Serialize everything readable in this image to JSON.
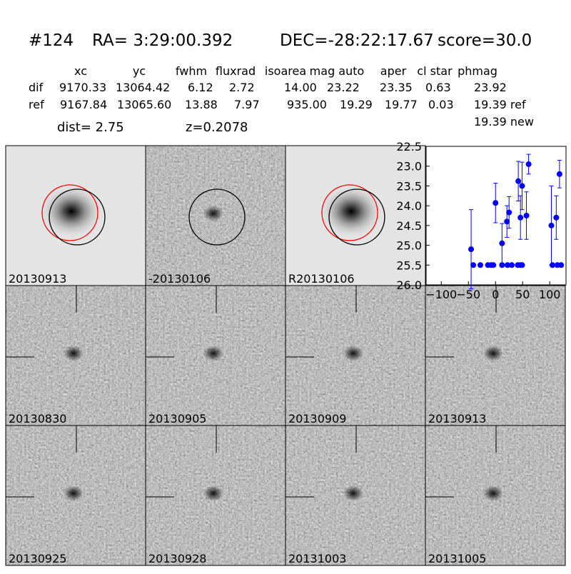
{
  "header": {
    "id": "#124",
    "ra": "RA= 3:29:00.392",
    "dec": "DEC=-28:22:17.67",
    "score": "score=30.0"
  },
  "table": {
    "columns": [
      "xc",
      "yc",
      "fwhm",
      "fluxrad",
      "isoarea",
      "mag auto",
      "aper",
      "cl star",
      "phmag"
    ],
    "rows": [
      [
        "dif",
        "9170.33",
        "13064.42",
        "6.12",
        "2.72",
        "14.00",
        "23.22",
        "23.35",
        "0.63",
        "23.92"
      ],
      [
        "ref",
        "9167.84",
        "13065.60",
        "13.88",
        "7.97",
        "935.00",
        "19.29",
        "19.77",
        "0.03",
        "19.39 ref"
      ]
    ],
    "note": "19.39 new"
  },
  "dist": "dist=  2.75",
  "redshift": "z=0.2078",
  "stamps": [
    {
      "label": "20130913"
    },
    {
      "label": "-20130106"
    },
    {
      "label": "R20130106"
    },
    {
      "label": "20130830"
    },
    {
      "label": "20130905"
    },
    {
      "label": "20130909"
    },
    {
      "label": "20130913",
      "color": "#ff0000"
    },
    {
      "label": "20130925"
    },
    {
      "label": "20130928"
    },
    {
      "label": "20131003"
    },
    {
      "label": "20131005"
    }
  ],
  "chart_data": {
    "type": "errorbar",
    "x": [
      -45,
      -41,
      -28,
      -14,
      -8,
      -4,
      0,
      12,
      12,
      21,
      22,
      25,
      30,
      41,
      42,
      46,
      46,
      49,
      49,
      57,
      61,
      103,
      105,
      112,
      114,
      118,
      121
    ],
    "series": [
      {
        "color": "#0000ff",
        "values": [
          25.1,
          25.5,
          25.5,
          25.5,
          25.5,
          25.5,
          23.93,
          25.5,
          24.95,
          24.4,
          25.5,
          24.17,
          25.5,
          25.5,
          23.38,
          25.5,
          24.3,
          25.5,
          23.5,
          24.25,
          22.95,
          24.5,
          25.5,
          24.3,
          25.5,
          23.2,
          25.5
        ],
        "errors": [
          1.0,
          null,
          null,
          null,
          null,
          null,
          0.5,
          null,
          0.5,
          0.4,
          null,
          0.4,
          null,
          null,
          0.5,
          null,
          0.55,
          null,
          0.6,
          0.6,
          0.25,
          1.0,
          null,
          0.55,
          null,
          0.35,
          null
        ]
      }
    ],
    "xlim": [
      -128,
      130
    ],
    "xticks": [
      {
        "value": -100,
        "label": "−100"
      },
      {
        "value": -50,
        "label": "−50"
      },
      0,
      50,
      100
    ],
    "ylim": [
      26.0,
      22.5
    ],
    "yticks": [
      22.5,
      {
        "value": 23,
        "label": "23.0"
      },
      23.5,
      {
        "value": 24,
        "label": "24.0"
      },
      24.5,
      {
        "value": 25,
        "label": "25.0"
      },
      25.5,
      {
        "value": 26,
        "label": "26.0"
      }
    ]
  }
}
